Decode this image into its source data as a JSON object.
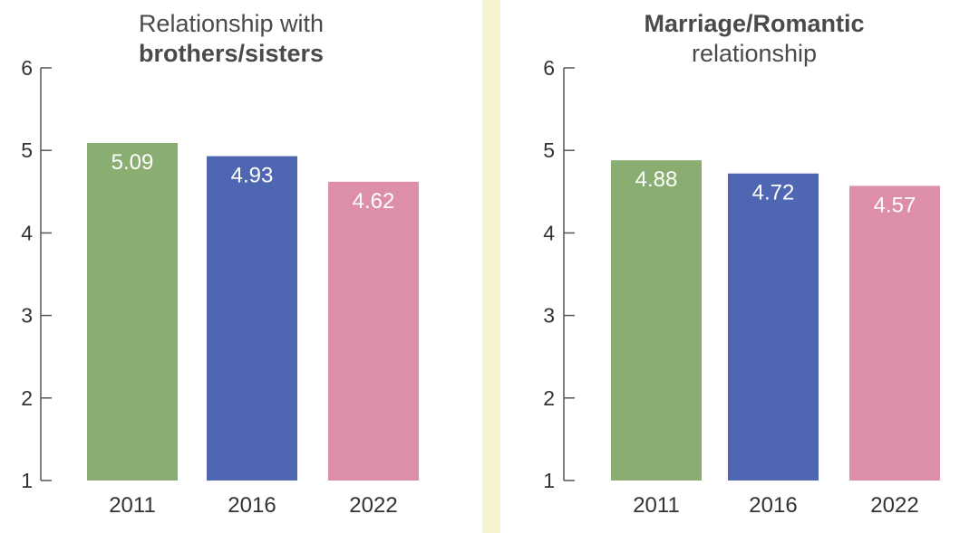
{
  "chart_data": [
    {
      "type": "bar",
      "title_normal": "Relationship with",
      "title_bold": "brothers/sisters",
      "categories": [
        "2011",
        "2016",
        "2022"
      ],
      "values": [
        5.09,
        4.93,
        4.62
      ],
      "value_labels": [
        "5.09",
        "4.93",
        "4.62"
      ],
      "colors": [
        "#8aae72",
        "#4f66b3",
        "#dc8eaa"
      ],
      "ylim": [
        1,
        6
      ],
      "yticks": [
        "1",
        "2",
        "3",
        "4",
        "5",
        "6"
      ],
      "xlabel": "",
      "ylabel": "",
      "grid": false
    },
    {
      "type": "bar",
      "title_bold": "Marriage/Romantic",
      "title_normal": "relationship",
      "categories": [
        "2011",
        "2016",
        "2022"
      ],
      "values": [
        4.88,
        4.72,
        4.57
      ],
      "value_labels": [
        "4.88",
        "4.72",
        "4.57"
      ],
      "colors": [
        "#8aae72",
        "#4f66b3",
        "#dc8eaa"
      ],
      "ylim": [
        1,
        6
      ],
      "yticks": [
        "1",
        "2",
        "3",
        "4",
        "5",
        "6"
      ],
      "xlabel": "",
      "ylabel": "",
      "grid": false
    }
  ]
}
